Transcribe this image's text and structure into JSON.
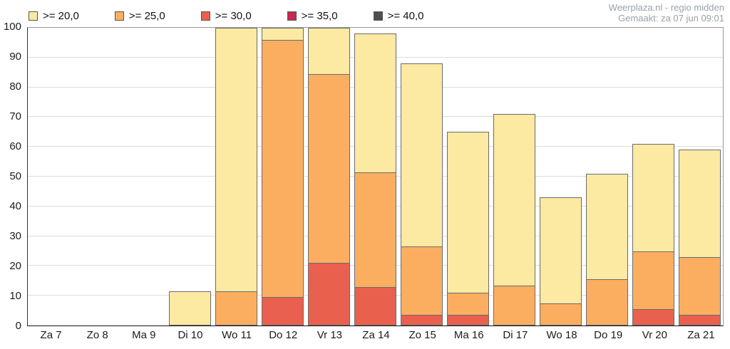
{
  "header": {
    "source": "Weerplaza.nl - regio midden",
    "generated": "Gemaakt: za 07 jun 09:01"
  },
  "legend": {
    "items": [
      {
        "label": ">= 20,0",
        "color": "#FCE9A2"
      },
      {
        "label": ">= 25,0",
        "color": "#FBAE60"
      },
      {
        "label": ">= 30,0",
        "color": "#E9604F"
      },
      {
        "label": ">= 35,0",
        "color": "#C52B50"
      },
      {
        "label": ">= 40,0",
        "color": "#4F4F4F"
      }
    ]
  },
  "chart_data": {
    "type": "bar",
    "stacking": "nested-overlay",
    "title": "",
    "xlabel": "",
    "ylabel": "",
    "ylim": [
      0,
      100
    ],
    "yticks": [
      0,
      10,
      20,
      30,
      40,
      50,
      60,
      70,
      80,
      90,
      100
    ],
    "grid": true,
    "legend_position": "top",
    "categories": [
      "Za 7",
      "Zo 8",
      "Ma 9",
      "Di 10",
      "Wo 11",
      "Do 12",
      "Vr 13",
      "Za 14",
      "Zo 15",
      "Ma 16",
      "Di 17",
      "Wo 18",
      "Do 19",
      "Vr 20",
      "Za 21"
    ],
    "series": [
      {
        "name": ">= 20,0",
        "color": "#FCE9A2",
        "values": [
          0,
          0,
          0,
          11.5,
          100,
          100,
          100,
          98,
          88,
          65,
          71,
          43,
          51,
          61,
          59
        ]
      },
      {
        "name": ">= 25,0",
        "color": "#FBAE60",
        "values": [
          0,
          0,
          0,
          0,
          11.5,
          96,
          84.5,
          51.5,
          26.5,
          11,
          13.5,
          7.5,
          15.5,
          25,
          23
        ]
      },
      {
        "name": ">= 30,0",
        "color": "#E9604F",
        "values": [
          0,
          0,
          0,
          0,
          0,
          9.5,
          21,
          13,
          3.5,
          3.5,
          0,
          0,
          0,
          5.5,
          3.5
        ]
      },
      {
        "name": ">= 35,0",
        "color": "#C52B50",
        "values": [
          0,
          0,
          0,
          0,
          0,
          0,
          0,
          0,
          0,
          0,
          0,
          0,
          0,
          0,
          0
        ]
      },
      {
        "name": ">= 40,0",
        "color": "#4F4F4F",
        "values": [
          0,
          0,
          0,
          0,
          0,
          0,
          0,
          0,
          0,
          0,
          0,
          0,
          0,
          0,
          0
        ]
      }
    ]
  }
}
